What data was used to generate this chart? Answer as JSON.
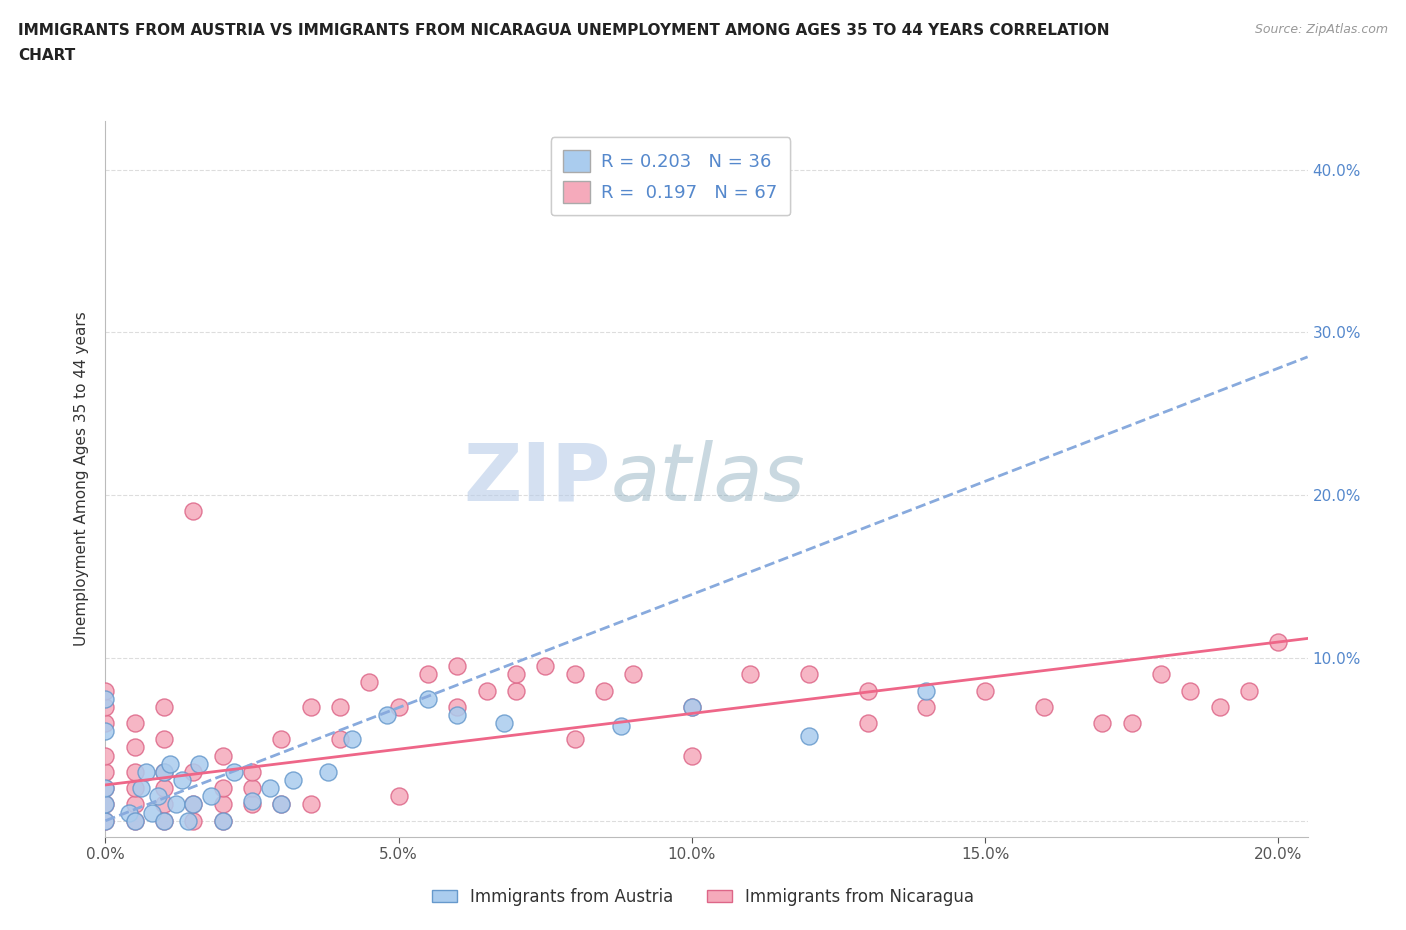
{
  "title_line1": "IMMIGRANTS FROM AUSTRIA VS IMMIGRANTS FROM NICARAGUA UNEMPLOYMENT AMONG AGES 35 TO 44 YEARS CORRELATION",
  "title_line2": "CHART",
  "source": "Source: ZipAtlas.com",
  "ylabel": "Unemployment Among Ages 35 to 44 years",
  "xlim": [
    0.0,
    0.205
  ],
  "ylim": [
    -0.01,
    0.43
  ],
  "xticks": [
    0.0,
    0.05,
    0.1,
    0.15,
    0.2
  ],
  "yticks": [
    0.0,
    0.1,
    0.2,
    0.3,
    0.4
  ],
  "austria_color": "#aaccee",
  "nicaragua_color": "#f5aabb",
  "austria_edge": "#6699cc",
  "nicaragua_edge": "#dd6688",
  "trend_austria_color": "#88aadd",
  "trend_nicaragua_color": "#ee6688",
  "R_austria": "0.203",
  "N_austria": "36",
  "R_nicaragua": "0.197",
  "N_nicaragua": "67",
  "watermark_zip": "ZIP",
  "watermark_atlas": "atlas",
  "background_color": "#ffffff",
  "grid_color": "#dddddd",
  "tick_color": "#5588cc",
  "austria_trend_x": [
    0.0,
    0.205
  ],
  "austria_trend_y": [
    0.0,
    0.285
  ],
  "nicaragua_trend_x": [
    0.0,
    0.205
  ],
  "nicaragua_trend_y": [
    0.022,
    0.112
  ],
  "austria_x": [
    0.0,
    0.0,
    0.0,
    0.0,
    0.0,
    0.004,
    0.005,
    0.006,
    0.007,
    0.008,
    0.009,
    0.01,
    0.01,
    0.011,
    0.012,
    0.013,
    0.014,
    0.015,
    0.016,
    0.018,
    0.02,
    0.022,
    0.025,
    0.028,
    0.03,
    0.032,
    0.038,
    0.042,
    0.048,
    0.055,
    0.06,
    0.068,
    0.088,
    0.1,
    0.12,
    0.14
  ],
  "austria_y": [
    0.0,
    0.01,
    0.02,
    0.055,
    0.075,
    0.005,
    0.0,
    0.02,
    0.03,
    0.005,
    0.015,
    0.0,
    0.03,
    0.035,
    0.01,
    0.025,
    0.0,
    0.01,
    0.035,
    0.015,
    0.0,
    0.03,
    0.012,
    0.02,
    0.01,
    0.025,
    0.03,
    0.05,
    0.065,
    0.075,
    0.065,
    0.06,
    0.058,
    0.07,
    0.052,
    0.08
  ],
  "nicaragua_x": [
    0.0,
    0.0,
    0.0,
    0.0,
    0.0,
    0.0,
    0.0,
    0.0,
    0.005,
    0.005,
    0.005,
    0.005,
    0.005,
    0.005,
    0.01,
    0.01,
    0.01,
    0.01,
    0.01,
    0.01,
    0.015,
    0.015,
    0.015,
    0.015,
    0.02,
    0.02,
    0.02,
    0.02,
    0.025,
    0.025,
    0.025,
    0.03,
    0.03,
    0.035,
    0.035,
    0.04,
    0.04,
    0.045,
    0.05,
    0.05,
    0.055,
    0.06,
    0.06,
    0.065,
    0.07,
    0.07,
    0.075,
    0.08,
    0.08,
    0.085,
    0.09,
    0.1,
    0.1,
    0.11,
    0.12,
    0.13,
    0.13,
    0.14,
    0.15,
    0.16,
    0.17,
    0.175,
    0.18,
    0.185,
    0.19,
    0.195,
    0.2
  ],
  "nicaragua_y": [
    0.0,
    0.01,
    0.02,
    0.03,
    0.04,
    0.06,
    0.07,
    0.08,
    0.0,
    0.01,
    0.02,
    0.03,
    0.045,
    0.06,
    0.0,
    0.01,
    0.02,
    0.03,
    0.05,
    0.07,
    0.0,
    0.01,
    0.03,
    0.19,
    0.0,
    0.01,
    0.02,
    0.04,
    0.01,
    0.02,
    0.03,
    0.01,
    0.05,
    0.01,
    0.07,
    0.05,
    0.07,
    0.085,
    0.015,
    0.07,
    0.09,
    0.07,
    0.095,
    0.08,
    0.08,
    0.09,
    0.095,
    0.05,
    0.09,
    0.08,
    0.09,
    0.04,
    0.07,
    0.09,
    0.09,
    0.06,
    0.08,
    0.07,
    0.08,
    0.07,
    0.06,
    0.06,
    0.09,
    0.08,
    0.07,
    0.08,
    0.11
  ]
}
